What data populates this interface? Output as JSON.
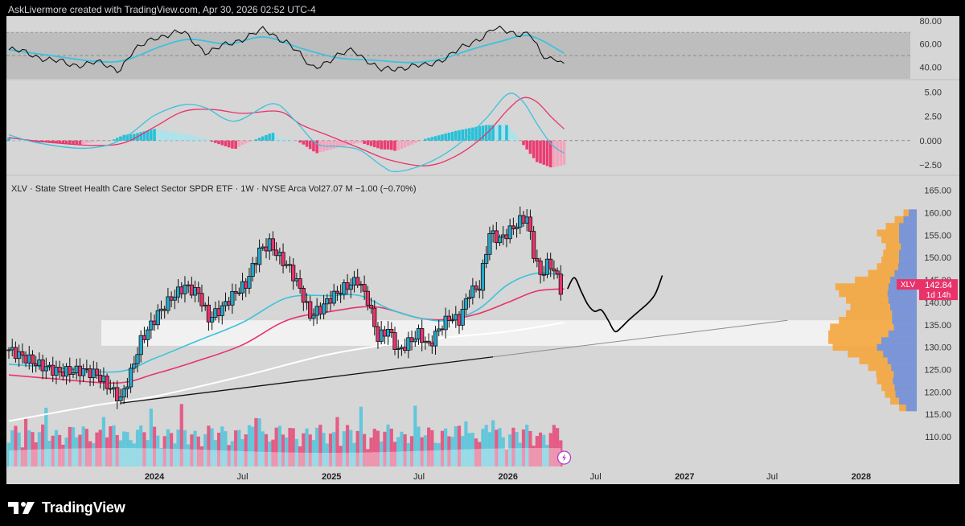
{
  "header": {
    "attribution": "AskLivermore created with TradingView.com, Apr 30, 2026 02:52 UTC-4"
  },
  "footer": {
    "brand": "TradingView",
    "logo_icon": "tradingview-logo-icon"
  },
  "colors": {
    "price_up": "#26a6c8",
    "price_down": "#e8336a",
    "ma_fast": "#3cc2dc",
    "ma_slow": "#e8336a",
    "ma_long": "#ffffff",
    "rsi": "#111111",
    "rsi_ma": "#3cc2dc",
    "macd": "#3cc2dc",
    "signal": "#e8336a",
    "volume_up": "#3cc2dc",
    "volume_down": "#e8336a",
    "vp_up": "#f5a63d",
    "vp_down": "#6d93e8",
    "last_price_label": "#e8336a",
    "projection": "#000000"
  },
  "chart_data": [
    {
      "id": "price",
      "type": "candlestick",
      "title": "XLV · State Street Health Care Select Sector SPDR ETF · 1W · NYSE Arca",
      "volume_label": "Vol",
      "volume_value": "27.07 M",
      "change": "−1.00 (−0.70%)",
      "ticker": "XLV",
      "last_price": "142.84",
      "countdown": "1d 14h",
      "ylim": [
        103,
        168
      ],
      "y_ticks": [
        "165.00",
        "160.00",
        "155.00",
        "150.00",
        "145.00",
        "140.00",
        "135.00",
        "130.00",
        "125.00",
        "120.00",
        "115.00",
        "110.00"
      ],
      "x_ticks": [
        "2024",
        "Jul",
        "2025",
        "Jul",
        "2026",
        "Jul",
        "2027",
        "Jul",
        "2028"
      ],
      "x_tick_dates": [
        "2024-01-01",
        "2024-07-01",
        "2025-01-01",
        "2025-07-01",
        "2026-01-01",
        "2026-07-01",
        "2027-01-01",
        "2027-07-01",
        "2028-01-01"
      ],
      "x_range": [
        "2023-03-01",
        "2028-04-05"
      ],
      "close_path": [
        [
          "2023-03-06",
          129.4
        ],
        [
          "2023-03-27",
          128.3
        ],
        [
          "2023-05-08",
          126.0
        ],
        [
          "2023-06-19",
          124.4
        ],
        [
          "2023-08-07",
          124.8
        ],
        [
          "2023-09-04",
          123.9
        ],
        [
          "2023-10-09",
          120.0
        ],
        [
          "2023-10-23",
          118.3
        ],
        [
          "2023-11-13",
          124.2
        ],
        [
          "2023-12-04",
          131.4
        ],
        [
          "2024-01-08",
          137.4
        ],
        [
          "2024-02-05",
          141.0
        ],
        [
          "2024-03-04",
          143.6
        ],
        [
          "2024-04-01",
          142.0
        ],
        [
          "2024-04-22",
          136.3
        ],
        [
          "2024-05-20",
          138.8
        ],
        [
          "2024-06-17",
          142.3
        ],
        [
          "2024-07-08",
          144.0
        ],
        [
          "2024-08-05",
          151.5
        ],
        [
          "2024-08-26",
          153.1
        ],
        [
          "2024-09-16",
          150.0
        ],
        [
          "2024-10-07",
          147.5
        ],
        [
          "2024-10-28",
          143.0
        ],
        [
          "2024-11-18",
          137.0
        ],
        [
          "2024-12-09",
          138.5
        ],
        [
          "2024-12-30",
          141.0
        ],
        [
          "2025-01-27",
          143.2
        ],
        [
          "2025-02-24",
          145.0
        ],
        [
          "2025-03-17",
          140.5
        ],
        [
          "2025-04-07",
          132.0
        ],
        [
          "2025-04-28",
          134.0
        ],
        [
          "2025-05-19",
          129.0
        ],
        [
          "2025-06-09",
          131.0
        ],
        [
          "2025-06-30",
          133.0
        ],
        [
          "2025-07-21",
          130.2
        ],
        [
          "2025-08-11",
          134.0
        ],
        [
          "2025-09-01",
          136.6
        ],
        [
          "2025-09-22",
          136.0
        ],
        [
          "2025-10-13",
          142.3
        ],
        [
          "2025-11-03",
          143.5
        ],
        [
          "2025-11-24",
          155.5
        ],
        [
          "2025-12-15",
          154.0
        ],
        [
          "2026-01-05",
          156.0
        ],
        [
          "2026-01-26",
          158.2
        ],
        [
          "2026-02-09",
          159.0
        ],
        [
          "2026-02-23",
          151.0
        ],
        [
          "2026-03-09",
          146.0
        ],
        [
          "2026-03-23",
          148.5
        ],
        [
          "2026-04-06",
          147.5
        ],
        [
          "2026-04-20",
          142.84
        ]
      ],
      "ma_fast": [
        [
          "2023-03-06",
          126.2
        ],
        [
          "2023-06-01",
          125.5
        ],
        [
          "2023-10-15",
          124.5
        ],
        [
          "2024-01-01",
          127.5
        ],
        [
          "2024-04-01",
          131.5
        ],
        [
          "2024-07-01",
          135.5
        ],
        [
          "2024-10-01",
          141.0
        ],
        [
          "2025-01-01",
          141.5
        ],
        [
          "2025-03-01",
          141.5
        ],
        [
          "2025-05-01",
          138.5
        ],
        [
          "2025-07-01",
          136.5
        ],
        [
          "2025-09-01",
          136.0
        ],
        [
          "2025-11-01",
          138.5
        ],
        [
          "2026-01-01",
          144.0
        ],
        [
          "2026-03-01",
          146.5
        ],
        [
          "2026-04-27",
          146.0
        ]
      ],
      "ma_slow": [
        [
          "2023-03-06",
          123.8
        ],
        [
          "2023-06-01",
          123.0
        ],
        [
          "2023-10-15",
          122.0
        ],
        [
          "2024-01-01",
          124.0
        ],
        [
          "2024-04-01",
          127.0
        ],
        [
          "2024-07-01",
          130.5
        ],
        [
          "2024-10-01",
          136.0
        ],
        [
          "2025-01-01",
          138.0
        ],
        [
          "2025-04-01",
          139.0
        ],
        [
          "2025-07-01",
          136.5
        ],
        [
          "2025-09-01",
          136.2
        ],
        [
          "2025-11-01",
          137.5
        ],
        [
          "2026-01-01",
          140.0
        ],
        [
          "2026-03-01",
          142.5
        ],
        [
          "2026-04-27",
          143.0
        ]
      ],
      "ma_long": [
        [
          "2023-03-06",
          113.5
        ],
        [
          "2023-09-01",
          117.0
        ],
        [
          "2024-01-01",
          119.0
        ],
        [
          "2024-07-01",
          123.5
        ],
        [
          "2025-01-01",
          128.5
        ],
        [
          "2025-07-01",
          131.5
        ],
        [
          "2026-01-01",
          133.5
        ],
        [
          "2026-04-27",
          135.5
        ]
      ],
      "trendline": [
        [
          "2023-10-23",
          117.5
        ],
        [
          "2027-08-02",
          136.0
        ]
      ],
      "support_zone": [
        130.3,
        136.0
      ],
      "projection_path": [
        [
          "2026-05-04",
          143.0
        ],
        [
          "2026-05-18",
          145.5
        ],
        [
          "2026-06-01",
          142.5
        ],
        [
          "2026-06-15",
          139.5
        ],
        [
          "2026-06-29",
          138.0
        ],
        [
          "2026-07-13",
          138.3
        ],
        [
          "2026-07-27",
          136.0
        ],
        [
          "2026-08-10",
          133.5
        ],
        [
          "2026-08-24",
          134.5
        ],
        [
          "2026-09-07",
          136.0
        ],
        [
          "2026-09-28",
          138.0
        ],
        [
          "2026-10-19",
          140.0
        ],
        [
          "2026-11-02",
          142.0
        ],
        [
          "2026-11-16",
          146.0
        ]
      ],
      "volume_profile": [
        [
          116.5,
          0.08,
          0.2
        ],
        [
          118.0,
          0.1,
          0.3
        ],
        [
          119.5,
          0.12,
          0.36
        ],
        [
          121.0,
          0.15,
          0.4
        ],
        [
          122.5,
          0.18,
          0.45
        ],
        [
          124.0,
          0.2,
          0.46
        ],
        [
          125.5,
          0.26,
          0.55
        ],
        [
          127.0,
          0.32,
          0.65
        ],
        [
          128.5,
          0.4,
          0.78
        ],
        [
          130.0,
          0.5,
          0.95
        ],
        [
          131.5,
          0.6,
          1.0
        ],
        [
          133.0,
          0.68,
          1.0
        ],
        [
          134.5,
          0.72,
          0.98
        ],
        [
          136.0,
          0.6,
          0.88
        ],
        [
          137.5,
          0.52,
          0.8
        ],
        [
          139.0,
          0.45,
          0.75
        ],
        [
          140.5,
          0.48,
          0.8
        ],
        [
          142.0,
          0.55,
          0.88
        ],
        [
          143.5,
          0.6,
          0.92
        ],
        [
          145.0,
          0.4,
          0.7
        ],
        [
          146.5,
          0.3,
          0.55
        ],
        [
          148.0,
          0.24,
          0.45
        ],
        [
          149.5,
          0.2,
          0.4
        ],
        [
          151.0,
          0.18,
          0.38
        ],
        [
          152.5,
          0.17,
          0.35
        ],
        [
          154.0,
          0.2,
          0.4
        ],
        [
          155.5,
          0.25,
          0.45
        ],
        [
          157.0,
          0.15,
          0.35
        ],
        [
          158.5,
          0.1,
          0.25
        ],
        [
          160.0,
          0.06,
          0.15
        ]
      ]
    },
    {
      "id": "rsi",
      "type": "line",
      "ylim": [
        30,
        84
      ],
      "y_ticks": [
        "80.00",
        "60.00",
        "40.00"
      ],
      "upper": 70,
      "middle": 50,
      "lower": 30,
      "rsi": [
        [
          "2023-03-06",
          55
        ],
        [
          "2023-04-15",
          52
        ],
        [
          "2023-06-01",
          46
        ],
        [
          "2023-07-15",
          42
        ],
        [
          "2023-09-01",
          44
        ],
        [
          "2023-10-20",
          38
        ],
        [
          "2023-11-15",
          52
        ],
        [
          "2024-01-01",
          66
        ],
        [
          "2024-03-01",
          70
        ],
        [
          "2024-04-20",
          52
        ],
        [
          "2024-06-01",
          60
        ],
        [
          "2024-08-15",
          72
        ],
        [
          "2024-10-01",
          62
        ],
        [
          "2024-11-20",
          40
        ],
        [
          "2025-01-01",
          46
        ],
        [
          "2025-02-15",
          56
        ],
        [
          "2025-04-10",
          37
        ],
        [
          "2025-05-20",
          40
        ],
        [
          "2025-07-15",
          41
        ],
        [
          "2025-09-01",
          50
        ],
        [
          "2025-10-15",
          60
        ],
        [
          "2025-12-01",
          73
        ],
        [
          "2026-01-15",
          69
        ],
        [
          "2026-02-15",
          70
        ],
        [
          "2026-03-10",
          50
        ],
        [
          "2026-03-25",
          46
        ],
        [
          "2026-04-10",
          49
        ],
        [
          "2026-04-27",
          43
        ]
      ],
      "rsi_ma": [
        [
          "2023-03-06",
          55
        ],
        [
          "2023-06-01",
          50
        ],
        [
          "2023-09-01",
          45
        ],
        [
          "2023-11-01",
          46
        ],
        [
          "2024-01-15",
          58
        ],
        [
          "2024-03-15",
          64
        ],
        [
          "2024-06-01",
          60
        ],
        [
          "2024-08-15",
          66
        ],
        [
          "2024-11-01",
          56
        ],
        [
          "2025-01-15",
          48
        ],
        [
          "2025-04-01",
          46
        ],
        [
          "2025-06-15",
          44
        ],
        [
          "2025-08-15",
          47
        ],
        [
          "2025-10-15",
          55
        ],
        [
          "2025-12-15",
          62
        ],
        [
          "2026-02-15",
          67
        ],
        [
          "2026-04-27",
          52
        ]
      ]
    },
    {
      "id": "macd",
      "type": "line",
      "ylim": [
        -3.5,
        6.2
      ],
      "y_ticks": [
        "5.00",
        "2.50",
        "0.000",
        "−2.50"
      ],
      "macd": [
        [
          "2023-03-06",
          0.6
        ],
        [
          "2023-05-01",
          -0.2
        ],
        [
          "2023-08-01",
          -0.8
        ],
        [
          "2023-10-01",
          -0.4
        ],
        [
          "2023-11-15",
          0.8
        ],
        [
          "2024-01-01",
          2.6
        ],
        [
          "2024-03-01",
          3.7
        ],
        [
          "2024-04-15",
          3.4
        ],
        [
          "2024-06-15",
          2.0
        ],
        [
          "2024-09-01",
          3.8
        ],
        [
          "2024-10-15",
          2.2
        ],
        [
          "2024-12-01",
          -0.3
        ],
        [
          "2025-01-15",
          -0.6
        ],
        [
          "2025-03-01",
          -1.0
        ],
        [
          "2025-04-15",
          -2.6
        ],
        [
          "2025-05-15",
          -3.2
        ],
        [
          "2025-07-15",
          -2.4
        ],
        [
          "2025-09-15",
          -0.6
        ],
        [
          "2025-11-15",
          2.2
        ],
        [
          "2026-01-01",
          4.8
        ],
        [
          "2026-02-01",
          4.0
        ],
        [
          "2026-03-01",
          1.8
        ],
        [
          "2026-04-01",
          -0.4
        ],
        [
          "2026-04-27",
          -1.3
        ]
      ],
      "signal": [
        [
          "2023-03-06",
          0.3
        ],
        [
          "2023-06-01",
          -0.2
        ],
        [
          "2023-09-01",
          -0.5
        ],
        [
          "2023-11-01",
          -0.2
        ],
        [
          "2024-01-01",
          1.4
        ],
        [
          "2024-03-01",
          3.0
        ],
        [
          "2024-05-01",
          3.2
        ],
        [
          "2024-07-01",
          2.8
        ],
        [
          "2024-09-15",
          3.0
        ],
        [
          "2024-11-01",
          1.6
        ],
        [
          "2025-01-01",
          0.4
        ],
        [
          "2025-03-01",
          -0.8
        ],
        [
          "2025-05-01",
          -2.0
        ],
        [
          "2025-07-15",
          -2.6
        ],
        [
          "2025-09-15",
          -1.6
        ],
        [
          "2025-11-15",
          0.6
        ],
        [
          "2026-01-01",
          3.2
        ],
        [
          "2026-02-01",
          4.4
        ],
        [
          "2026-03-01",
          4.0
        ],
        [
          "2026-04-01",
          2.4
        ],
        [
          "2026-04-27",
          1.2
        ]
      ],
      "histogram_source": "macd - signal"
    }
  ]
}
